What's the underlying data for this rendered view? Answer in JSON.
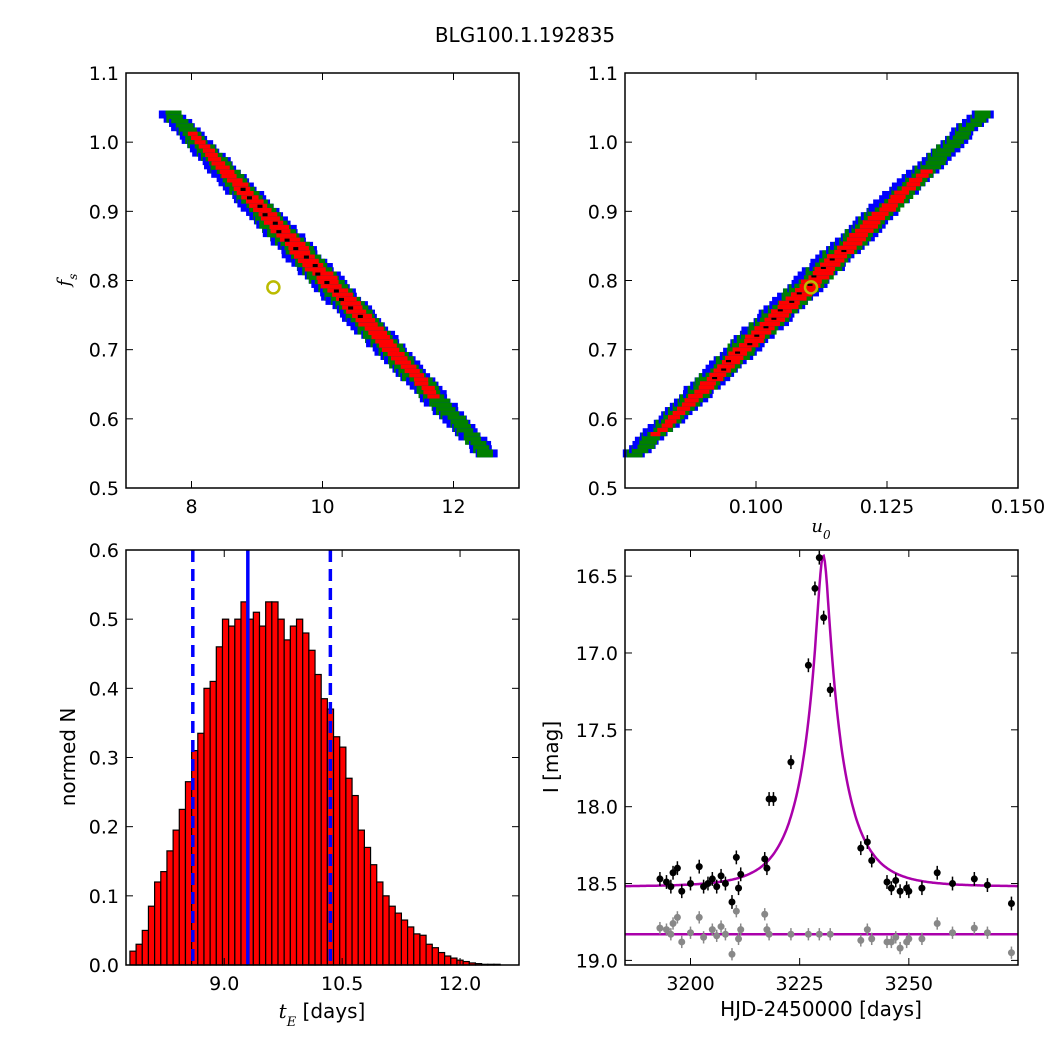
{
  "figure_title": "BLG100.1.192835",
  "chart_data": [
    {
      "id": "fs-vs-tE",
      "type": "heatmap",
      "xlim": [
        7,
        13
      ],
      "ylim": [
        0.5,
        1.1
      ],
      "xticks": [
        8,
        10,
        12
      ],
      "yticks": [
        0.5,
        0.6,
        0.7,
        0.8,
        0.9,
        1.0,
        1.1
      ],
      "xtick_labels": [
        "8",
        "10",
        "12"
      ],
      "ytick_labels": [
        "0.5",
        "0.6",
        "0.7",
        "0.8",
        "0.9",
        "1.0",
        "1.1"
      ],
      "ylabel": "f",
      "ylabel_sub": "s",
      "xlabel": "",
      "confidence_colors": [
        "#0000ff",
        "#008000",
        "#ff0000",
        "#000000"
      ],
      "ridge": {
        "x_start": 7.7,
        "x_end": 12.5,
        "y_start": 1.04,
        "y_end": 0.55
      },
      "best_fit": {
        "x": 9.25,
        "y": 0.79
      }
    },
    {
      "id": "fs-vs-u0",
      "type": "heatmap",
      "xlim": [
        0.075,
        0.15
      ],
      "ylim": [
        0.5,
        1.1
      ],
      "xticks": [
        0.1,
        0.125,
        0.15
      ],
      "yticks": [
        0.5,
        0.6,
        0.7,
        0.8,
        0.9,
        1.0,
        1.1
      ],
      "xtick_labels": [
        "0.100",
        "0.125",
        "0.150"
      ],
      "ytick_labels": [
        "0.5",
        "0.6",
        "0.7",
        "0.8",
        "0.9",
        "1.0",
        "1.1"
      ],
      "xlabel": "u",
      "xlabel_sub": "0",
      "ylabel": "",
      "confidence_colors": [
        "#0000ff",
        "#008000",
        "#ff0000",
        "#000000"
      ],
      "ridge": {
        "x_start": 0.077,
        "x_end": 0.143,
        "y_start": 0.55,
        "y_end": 1.04
      },
      "best_fit": {
        "x": 0.1105,
        "y": 0.79
      }
    },
    {
      "id": "tE-histogram",
      "type": "bar",
      "xlim": [
        7.75,
        12.75
      ],
      "ylim": [
        0,
        0.6
      ],
      "xticks": [
        9.0,
        10.5,
        12.0
      ],
      "xtick_labels": [
        "9.0",
        "10.5",
        "12.0"
      ],
      "yticks": [
        0.0,
        0.1,
        0.2,
        0.3,
        0.4,
        0.5,
        0.6
      ],
      "ytick_labels": [
        "0.0",
        "0.1",
        "0.2",
        "0.3",
        "0.4",
        "0.5",
        "0.6"
      ],
      "xlabel": "t",
      "xlabel_sub": "E",
      "xlabel_unit": " [days]",
      "ylabel": "normed N",
      "bar_color": "#ff0000",
      "line_color": "#0000ff",
      "bin_start": 7.8,
      "bin_width": 0.0785,
      "values": [
        0.02,
        0.03,
        0.05,
        0.085,
        0.12,
        0.135,
        0.165,
        0.195,
        0.225,
        0.265,
        0.31,
        0.335,
        0.4,
        0.41,
        0.46,
        0.5,
        0.49,
        0.5,
        0.525,
        0.5,
        0.51,
        0.49,
        0.525,
        0.525,
        0.5,
        0.47,
        0.49,
        0.5,
        0.48,
        0.455,
        0.42,
        0.385,
        0.37,
        0.33,
        0.315,
        0.27,
        0.245,
        0.195,
        0.17,
        0.145,
        0.12,
        0.1,
        0.085,
        0.075,
        0.065,
        0.055,
        0.045,
        0.043,
        0.03,
        0.025,
        0.018,
        0.013,
        0.01,
        0.007,
        0.005,
        0.003,
        0.002,
        0.001,
        0.001,
        0.001
      ],
      "median": 9.3,
      "lower": 8.6,
      "upper": 10.35
    },
    {
      "id": "light-curve",
      "type": "scatter",
      "xlim": [
        3185,
        3275
      ],
      "ylim": [
        19.03,
        16.33
      ],
      "xticks": [
        3200,
        3225,
        3250
      ],
      "xtick_labels": [
        "3200",
        "3225",
        "3250"
      ],
      "yticks": [
        16.5,
        17.0,
        17.5,
        18.0,
        18.5,
        19.0
      ],
      "ytick_labels": [
        "16.5",
        "17.0",
        "17.5",
        "18.0",
        "18.5",
        "19.0"
      ],
      "xlabel": "HJD-2450000 [days]",
      "ylabel": "I [mag]",
      "model_color": "#aa00aa",
      "model": {
        "t0": 3230.4,
        "baseline": 18.52,
        "peak": 16.38,
        "tE": 9.3
      },
      "baseline_model_mag": 18.83,
      "data_points": [
        [
          3193,
          18.47
        ],
        [
          3194.5,
          18.49
        ],
        [
          3195.5,
          18.52
        ],
        [
          3196,
          18.43
        ],
        [
          3197,
          18.4
        ],
        [
          3198,
          18.55
        ],
        [
          3200,
          18.5
        ],
        [
          3202,
          18.39
        ],
        [
          3203,
          18.52
        ],
        [
          3204,
          18.5
        ],
        [
          3205,
          18.47
        ],
        [
          3206,
          18.52
        ],
        [
          3207,
          18.45
        ],
        [
          3208,
          18.5
        ],
        [
          3209.5,
          18.62
        ],
        [
          3210.5,
          18.33
        ],
        [
          3211,
          18.53
        ],
        [
          3211.5,
          18.44
        ],
        [
          3217,
          18.34
        ],
        [
          3217.5,
          18.4
        ],
        [
          3218,
          17.95
        ],
        [
          3219,
          17.95
        ],
        [
          3223,
          17.71
        ],
        [
          3227,
          17.08
        ],
        [
          3228.5,
          16.58
        ],
        [
          3229.5,
          16.38
        ],
        [
          3230.5,
          16.77
        ],
        [
          3232,
          17.24
        ],
        [
          3239,
          18.27
        ],
        [
          3240.5,
          18.23
        ],
        [
          3241.5,
          18.35
        ],
        [
          3245,
          18.49
        ],
        [
          3246,
          18.53
        ],
        [
          3247,
          18.48
        ],
        [
          3248,
          18.55
        ],
        [
          3249.5,
          18.53
        ],
        [
          3250,
          18.55
        ],
        [
          3253,
          18.53
        ],
        [
          3256.5,
          18.43
        ],
        [
          3260,
          18.5
        ],
        [
          3265,
          18.47
        ],
        [
          3268,
          18.51
        ],
        [
          3273.5,
          18.63
        ]
      ],
      "residual_points": [
        [
          3193,
          18.79
        ],
        [
          3194.5,
          18.8
        ],
        [
          3195.5,
          18.83
        ],
        [
          3196,
          18.76
        ],
        [
          3197,
          18.72
        ],
        [
          3198,
          18.88
        ],
        [
          3200,
          18.82
        ],
        [
          3202,
          18.72
        ],
        [
          3203,
          18.85
        ],
        [
          3205,
          18.8
        ],
        [
          3206,
          18.84
        ],
        [
          3207,
          18.78
        ],
        [
          3208,
          18.83
        ],
        [
          3209.5,
          18.96
        ],
        [
          3210.5,
          18.68
        ],
        [
          3211,
          18.86
        ],
        [
          3211.5,
          18.8
        ],
        [
          3217,
          18.7
        ],
        [
          3217.5,
          18.8
        ],
        [
          3218,
          18.83
        ],
        [
          3223,
          18.83
        ],
        [
          3227,
          18.83
        ],
        [
          3229.5,
          18.83
        ],
        [
          3232,
          18.83
        ],
        [
          3239,
          18.87
        ],
        [
          3240.5,
          18.8
        ],
        [
          3241.5,
          18.86
        ],
        [
          3245,
          18.88
        ],
        [
          3246,
          18.88
        ],
        [
          3247,
          18.85
        ],
        [
          3248,
          18.92
        ],
        [
          3249.5,
          18.88
        ],
        [
          3250,
          18.86
        ],
        [
          3253,
          18.86
        ],
        [
          3256.5,
          18.76
        ],
        [
          3260,
          18.82
        ],
        [
          3265,
          18.79
        ],
        [
          3268,
          18.82
        ],
        [
          3273.5,
          18.95
        ]
      ]
    }
  ]
}
